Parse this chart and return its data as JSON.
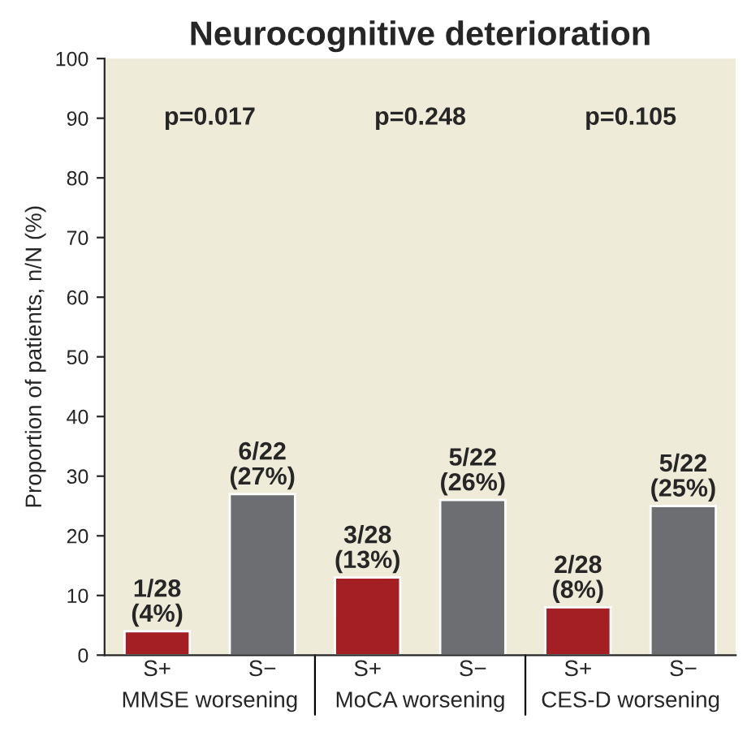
{
  "chart_data": {
    "type": "bar",
    "title": "Neurocognitive deterioration",
    "ylabel": "Proportion of patients, n/N (%)",
    "categories": [
      "S+",
      "S−",
      "S+",
      "S−",
      "S+",
      "S−"
    ],
    "values": [
      4,
      27,
      13,
      26,
      8,
      25
    ],
    "colors": [
      "#a31f24",
      "#6d6e71",
      "#a31f24",
      "#6d6e71",
      "#a31f24",
      "#6d6e71"
    ],
    "value_labels": [
      "1/28\n(4%)",
      "6/22\n(27%)",
      "3/28\n(13%)",
      "5/22\n(26%)",
      "2/28\n(8%)",
      "5/22\n(25%)"
    ],
    "annotations": [
      "p=0.017",
      "p=0.248",
      "p=0.105",
      "MMSE worsening",
      "MoCA worsening",
      "CES-D worsening"
    ],
    "ylim": [
      0,
      100
    ],
    "yticks": [
      0,
      10,
      20,
      30,
      40,
      50,
      60,
      70,
      80,
      90,
      100
    ],
    "grid": false,
    "legend": false
  }
}
